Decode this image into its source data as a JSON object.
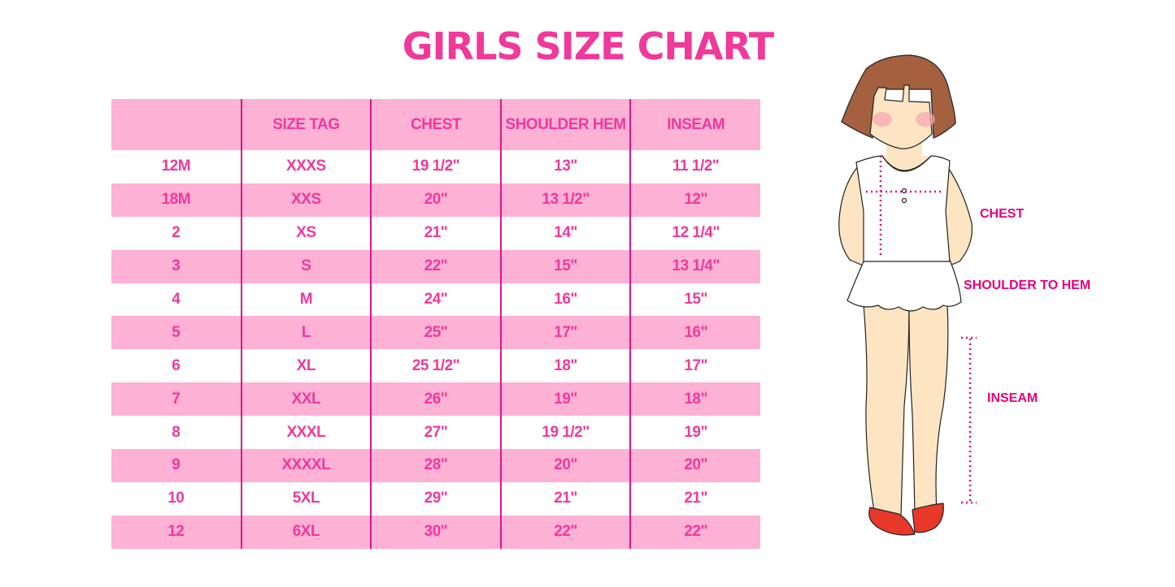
{
  "title": "GIRLS SIZE CHART",
  "colors": {
    "accent": "#f0399a",
    "row_band": "#fdb1d5",
    "divider": "#e0148c",
    "label": "#e6007e"
  },
  "table": {
    "headers": [
      "",
      "SIZE TAG",
      "CHEST",
      "SHOULDER HEM",
      "INSEAM"
    ],
    "rows": [
      [
        "12M",
        "XXXS",
        "19 1/2\"",
        "13\"",
        "11 1/2\""
      ],
      [
        "18M",
        "XXS",
        "20\"",
        "13 1/2\"",
        "12\""
      ],
      [
        "2",
        "XS",
        "21\"",
        "14\"",
        "12 1/4\""
      ],
      [
        "3",
        "S",
        "22\"",
        "15\"",
        "13 1/4\""
      ],
      [
        "4",
        "M",
        "24\"",
        "16\"",
        "15\""
      ],
      [
        "5",
        "L",
        "25\"",
        "17\"",
        "16\""
      ],
      [
        "6",
        "XL",
        "25 1/2\"",
        "18\"",
        "17\""
      ],
      [
        "7",
        "XXL",
        "26\"",
        "19\"",
        "18\""
      ],
      [
        "8",
        "XXXL",
        "27\"",
        "19 1/2\"",
        "19\""
      ],
      [
        "9",
        "XXXXL",
        "28\"",
        "20\"",
        "20\""
      ],
      [
        "10",
        "5XL",
        "29\"",
        "21\"",
        "21\""
      ],
      [
        "12",
        "6XL",
        "30\"",
        "22\"",
        "22\""
      ]
    ]
  },
  "illustration": {
    "labels": {
      "chest": "CHEST",
      "shoulder_to_hem": "SHOULDER TO HEM",
      "inseam": "INSEAM"
    }
  }
}
